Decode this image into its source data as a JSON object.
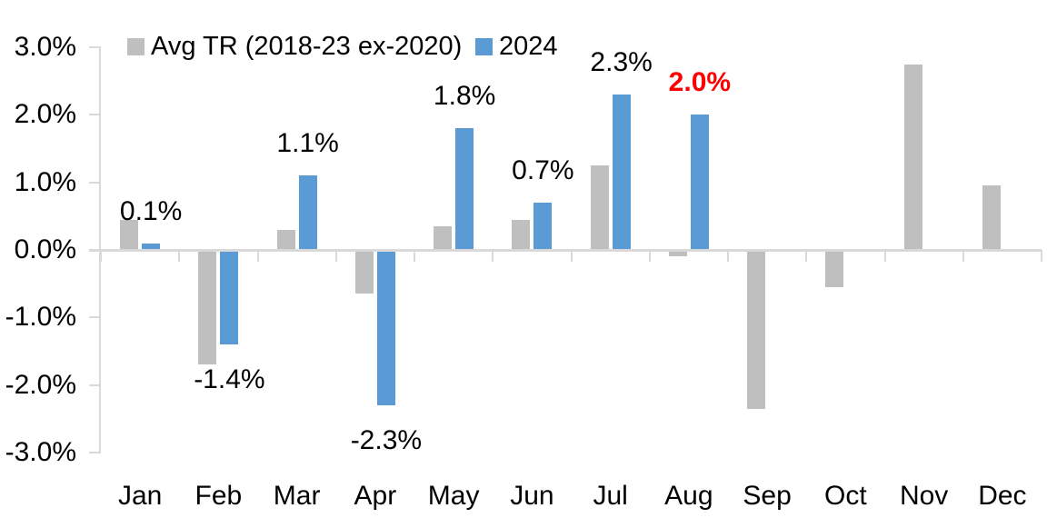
{
  "chart_data": {
    "type": "bar",
    "title": "",
    "categories": [
      "Jan",
      "Feb",
      "Mar",
      "Apr",
      "May",
      "Jun",
      "Jul",
      "Aug",
      "Sep",
      "Oct",
      "Nov",
      "Dec"
    ],
    "series": [
      {
        "name": "Avg TR (2018-23 ex-2020)",
        "color": "#BFBFBF",
        "values": [
          0.45,
          -1.7,
          0.3,
          -0.65,
          0.35,
          0.45,
          1.25,
          -0.1,
          -2.35,
          -0.55,
          2.75,
          0.95
        ]
      },
      {
        "name": "2024",
        "color": "#5B9BD5",
        "values": [
          0.1,
          -1.4,
          1.1,
          -2.3,
          1.8,
          0.7,
          2.3,
          2.0,
          null,
          null,
          null,
          null
        ]
      }
    ],
    "data_labels": {
      "series": "2024",
      "items": [
        {
          "category": "Jan",
          "text": "0.1%",
          "color": "#000000",
          "bold": false
        },
        {
          "category": "Feb",
          "text": "-1.4%",
          "color": "#000000",
          "bold": false
        },
        {
          "category": "Mar",
          "text": "1.1%",
          "color": "#000000",
          "bold": false
        },
        {
          "category": "Apr",
          "text": "-2.3%",
          "color": "#000000",
          "bold": false
        },
        {
          "category": "May",
          "text": "1.8%",
          "color": "#000000",
          "bold": false
        },
        {
          "category": "Jun",
          "text": "0.7%",
          "color": "#000000",
          "bold": false
        },
        {
          "category": "Jul",
          "text": "2.3%",
          "color": "#000000",
          "bold": false
        },
        {
          "category": "Aug",
          "text": "2.0%",
          "color": "#FF0000",
          "bold": true
        }
      ]
    },
    "y_axis": {
      "min": -3,
      "max": 3,
      "step": 1,
      "tick_labels": [
        "3.0%",
        "2.0%",
        "1.0%",
        "0.0%",
        "-1.0%",
        "-2.0%",
        "-3.0%"
      ],
      "axis_color": "#D9D9D9"
    },
    "legend": {
      "position": "top"
    },
    "grid": false,
    "background": "#FFFFFF"
  }
}
